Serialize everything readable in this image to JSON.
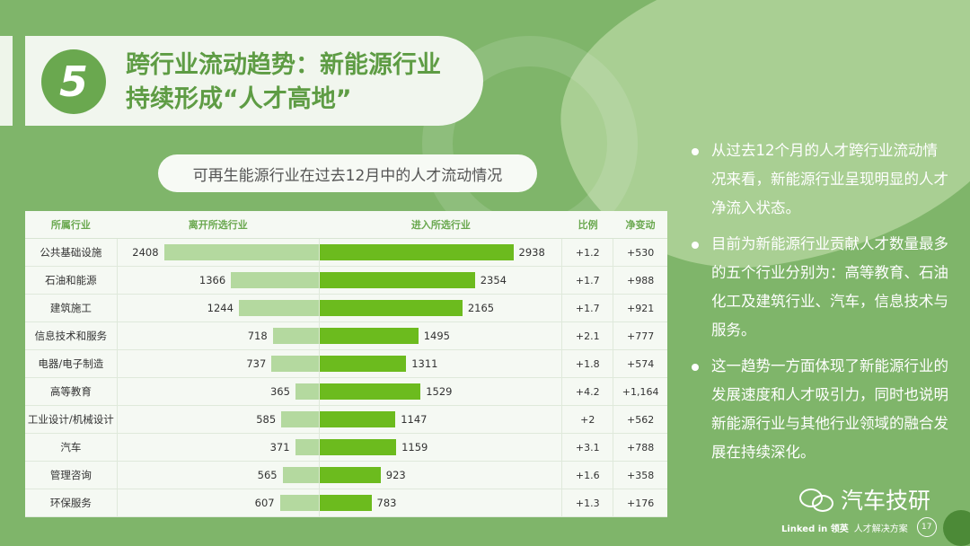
{
  "header": {
    "number": "5",
    "title_line1": "跨行业流动趋势：新能源行业",
    "title_line2": "持续形成“人才高地”"
  },
  "subtitle": "可再生能源行业在过去12月中的人才流动情况",
  "colors": {
    "accent": "#6aa84f",
    "bar_in": "#6cbb1e",
    "bar_out": "#b4d99f"
  },
  "table": {
    "headers": [
      "所属行业",
      "离开所选行业",
      "进入所选行业",
      "比例",
      "净变动"
    ]
  },
  "chart_data": {
    "type": "bar",
    "categories": [
      "公共基础设施",
      "石油和能源",
      "建筑施工",
      "信息技术和服务",
      "电器/电子制造",
      "高等教育",
      "工业设计/机械设计",
      "汽车",
      "管理咨询",
      "环保服务"
    ],
    "series": [
      {
        "name": "离开所选行业",
        "values": [
          2408,
          1366,
          1244,
          718,
          737,
          365,
          585,
          371,
          565,
          607
        ]
      },
      {
        "name": "进入所选行业",
        "values": [
          2938,
          2354,
          2165,
          1495,
          1311,
          1529,
          1147,
          1159,
          923,
          783
        ]
      }
    ],
    "ratio": [
      "+1.2",
      "+1.7",
      "+1.7",
      "+2.1",
      "+1.8",
      "+4.2",
      "+2",
      "+3.1",
      "+1.6",
      "+1.3"
    ],
    "net_change": [
      "+530",
      "+988",
      "+921",
      "+777",
      "+574",
      "+1,164",
      "+562",
      "+788",
      "+358",
      "+176"
    ],
    "xlim": [
      0,
      3000
    ]
  },
  "bullets": [
    "从过去12个月的人才跨行业流动情况来看，新能源行业呈现明显的人才净流入状态。",
    "目前为新能源行业贡献人才数量最多的五个行业分别为：高等教育、石油化工及建筑行业、汽车，信息技术与服务。",
    "这一趋势一方面体现了新能源行业的发展速度和人才吸引力，同时也说明新能源行业与其他行业领域的融合发展在持续深化。"
  ],
  "brand": {
    "name": "汽车技研",
    "icon": "wechat-icon"
  },
  "footer": {
    "logo_text": "Linked in 领英",
    "tagline": "人才解决方案",
    "page": "17"
  }
}
